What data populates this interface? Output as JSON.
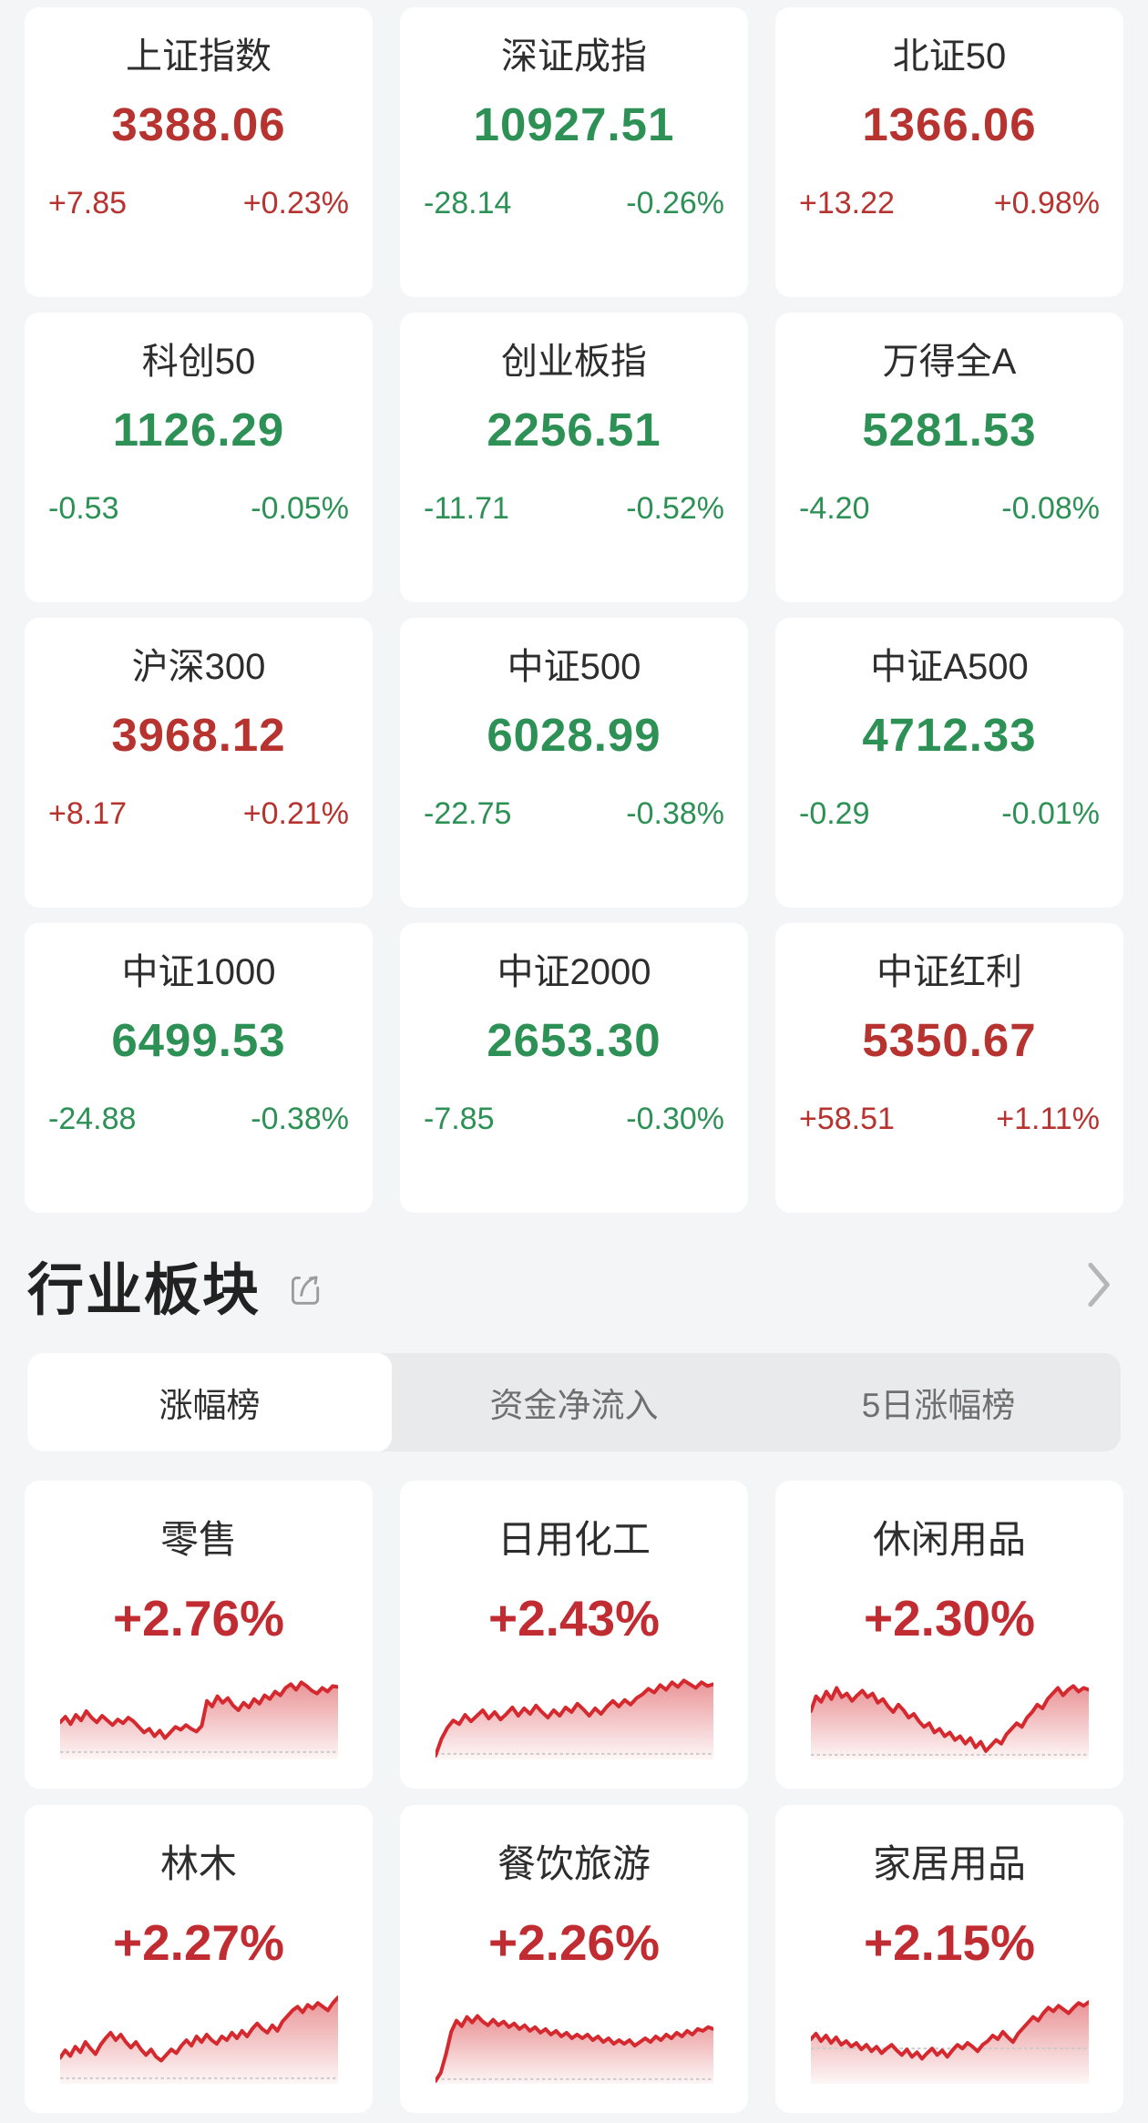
{
  "colors": {
    "page_bg": "#f4f5f6",
    "card_bg": "#ffffff",
    "text_primary": "#2d2d2d",
    "up_red": "#b73330",
    "down_green": "#2d9156",
    "sector_red": "#c02c31",
    "spark_red": "#d4292e",
    "tab_inactive": "#6f6f6f",
    "dash_gray": "#cbcbcb",
    "icon_gray": "#9b9b9b",
    "chevron_gray": "#b6b6b6"
  },
  "indices": [
    {
      "name": "上证指数",
      "value": "3388.06",
      "change": "+7.85",
      "change_pct": "+0.23%",
      "dir": "up"
    },
    {
      "name": "深证成指",
      "value": "10927.51",
      "change": "-28.14",
      "change_pct": "-0.26%",
      "dir": "down"
    },
    {
      "name": "北证50",
      "value": "1366.06",
      "change": "+13.22",
      "change_pct": "+0.98%",
      "dir": "up"
    },
    {
      "name": "科创50",
      "value": "1126.29",
      "change": "-0.53",
      "change_pct": "-0.05%",
      "dir": "down"
    },
    {
      "name": "创业板指",
      "value": "2256.51",
      "change": "-11.71",
      "change_pct": "-0.52%",
      "dir": "down"
    },
    {
      "name": "万得全A",
      "value": "5281.53",
      "change": "-4.20",
      "change_pct": "-0.08%",
      "dir": "down"
    },
    {
      "name": "沪深300",
      "value": "3968.12",
      "change": "+8.17",
      "change_pct": "+0.21%",
      "dir": "up"
    },
    {
      "name": "中证500",
      "value": "6028.99",
      "change": "-22.75",
      "change_pct": "-0.38%",
      "dir": "down"
    },
    {
      "name": "中证A500",
      "value": "4712.33",
      "change": "-0.29",
      "change_pct": "-0.01%",
      "dir": "down"
    },
    {
      "name": "中证1000",
      "value": "6499.53",
      "change": "-24.88",
      "change_pct": "-0.38%",
      "dir": "down"
    },
    {
      "name": "中证2000",
      "value": "2653.30",
      "change": "-7.85",
      "change_pct": "-0.30%",
      "dir": "down"
    },
    {
      "name": "中证红利",
      "value": "5350.67",
      "change": "+58.51",
      "change_pct": "+1.11%",
      "dir": "up"
    }
  ],
  "section": {
    "title": "行业板块"
  },
  "tabs": [
    {
      "label": "涨幅榜",
      "active": true
    },
    {
      "label": "资金净流入",
      "active": false
    },
    {
      "label": "5日涨幅榜",
      "active": false
    }
  ],
  "sectors": [
    {
      "name": "零售",
      "change_pct": "+2.76%",
      "baseline": 8,
      "points": [
        40,
        46,
        38,
        48,
        42,
        52,
        45,
        40,
        47,
        42,
        37,
        43,
        39,
        45,
        41,
        35,
        29,
        33,
        25,
        31,
        23,
        29,
        35,
        32,
        37,
        33,
        30,
        36,
        63,
        57,
        68,
        61,
        66,
        58,
        53,
        61,
        56,
        65,
        60,
        69,
        65,
        73,
        69,
        77,
        81,
        75,
        83,
        79,
        74,
        71,
        77,
        73,
        79,
        78
      ]
    },
    {
      "name": "日用化工",
      "change_pct": "+2.43%",
      "baseline": 6,
      "points": [
        4,
        22,
        34,
        42,
        38,
        48,
        41,
        47,
        53,
        44,
        51,
        43,
        49,
        56,
        47,
        55,
        49,
        58,
        51,
        45,
        53,
        47,
        56,
        51,
        60,
        54,
        47,
        55,
        49,
        57,
        63,
        57,
        64,
        59,
        66,
        70,
        76,
        72,
        80,
        75,
        83,
        78,
        85,
        81,
        77,
        83,
        79,
        81
      ]
    },
    {
      "name": "休闲用品",
      "change_pct": "+2.30%",
      "baseline": 5,
      "points": [
        52,
        68,
        62,
        73,
        65,
        77,
        67,
        71,
        63,
        69,
        74,
        67,
        71,
        61,
        65,
        57,
        51,
        59,
        53,
        45,
        49,
        41,
        35,
        39,
        29,
        33,
        25,
        29,
        21,
        25,
        17,
        23,
        13,
        19,
        9,
        15,
        21,
        17,
        27,
        33,
        39,
        35,
        45,
        51,
        59,
        55,
        65,
        71,
        77,
        69,
        75,
        79,
        73,
        77,
        75
      ]
    },
    {
      "name": "林木",
      "change_pct": "+2.27%",
      "baseline": 6,
      "points": [
        28,
        36,
        30,
        40,
        34,
        45,
        38,
        32,
        42,
        49,
        55,
        47,
        53,
        45,
        39,
        45,
        37,
        31,
        37,
        29,
        25,
        31,
        37,
        33,
        41,
        47,
        41,
        51,
        45,
        53,
        47,
        43,
        51,
        47,
        55,
        49,
        57,
        51,
        59,
        65,
        59,
        55,
        63,
        57,
        67,
        73,
        79,
        83,
        77,
        85,
        81,
        87,
        83,
        79,
        87,
        93
      ]
    },
    {
      "name": "餐饮旅游",
      "change_pct": "+2.26%",
      "baseline": 5,
      "points": [
        3,
        12,
        32,
        56,
        68,
        62,
        72,
        66,
        73,
        67,
        63,
        69,
        63,
        67,
        61,
        65,
        59,
        63,
        57,
        61,
        55,
        59,
        53,
        57,
        51,
        55,
        49,
        53,
        49,
        53,
        47,
        51,
        45,
        49,
        43,
        47,
        43,
        47,
        41,
        45,
        49,
        45,
        51,
        47,
        53,
        49,
        55,
        51,
        57,
        53,
        59,
        57,
        61,
        59
      ]
    },
    {
      "name": "家居用品",
      "change_pct": "+2.15%",
      "baseline": 38,
      "points": [
        48,
        54,
        46,
        52,
        44,
        50,
        42,
        46,
        40,
        44,
        37,
        42,
        35,
        40,
        33,
        38,
        42,
        36,
        31,
        37,
        29,
        34,
        27,
        33,
        38,
        31,
        36,
        29,
        36,
        42,
        38,
        44,
        40,
        35,
        42,
        46,
        52,
        48,
        56,
        50,
        45,
        54,
        60,
        66,
        72,
        68,
        76,
        82,
        78,
        84,
        80,
        76,
        82,
        87,
        84,
        88
      ]
    }
  ]
}
